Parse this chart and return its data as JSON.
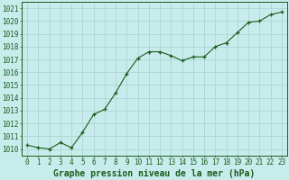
{
  "x": [
    0,
    1,
    2,
    3,
    4,
    5,
    6,
    7,
    8,
    9,
    10,
    11,
    12,
    13,
    14,
    15,
    16,
    17,
    18,
    19,
    20,
    21,
    22,
    23
  ],
  "y": [
    1010.3,
    1010.1,
    1010.0,
    1010.5,
    1010.1,
    1011.3,
    1012.7,
    1013.1,
    1014.4,
    1015.9,
    1017.1,
    1017.6,
    1017.6,
    1017.3,
    1016.9,
    1017.2,
    1017.2,
    1018.0,
    1018.3,
    1019.1,
    1019.9,
    1020.0,
    1020.5,
    1020.7
  ],
  "line_color": "#1a5c1a",
  "marker_color": "#1a5c1a",
  "bg_color": "#c8ecec",
  "plot_bg_color": "#c8ecec",
  "grid_color": "#a8d0d0",
  "xlabel": "Graphe pression niveau de la mer (hPa)",
  "xlabel_color": "#1a5c1a",
  "tick_color": "#1a5c1a",
  "spine_color": "#1a5c1a",
  "ylim_min": 1009.5,
  "ylim_max": 1021.5,
  "ytick_start": 1010,
  "ytick_end": 1021,
  "ytick_step": 1,
  "xtick_labels": [
    "0",
    "1",
    "2",
    "3",
    "4",
    "5",
    "6",
    "7",
    "8",
    "9",
    "10",
    "11",
    "12",
    "13",
    "14",
    "15",
    "16",
    "17",
    "18",
    "19",
    "20",
    "21",
    "22",
    "23"
  ],
  "font_size_tick": 5.5,
  "font_size_xlabel": 7.0
}
